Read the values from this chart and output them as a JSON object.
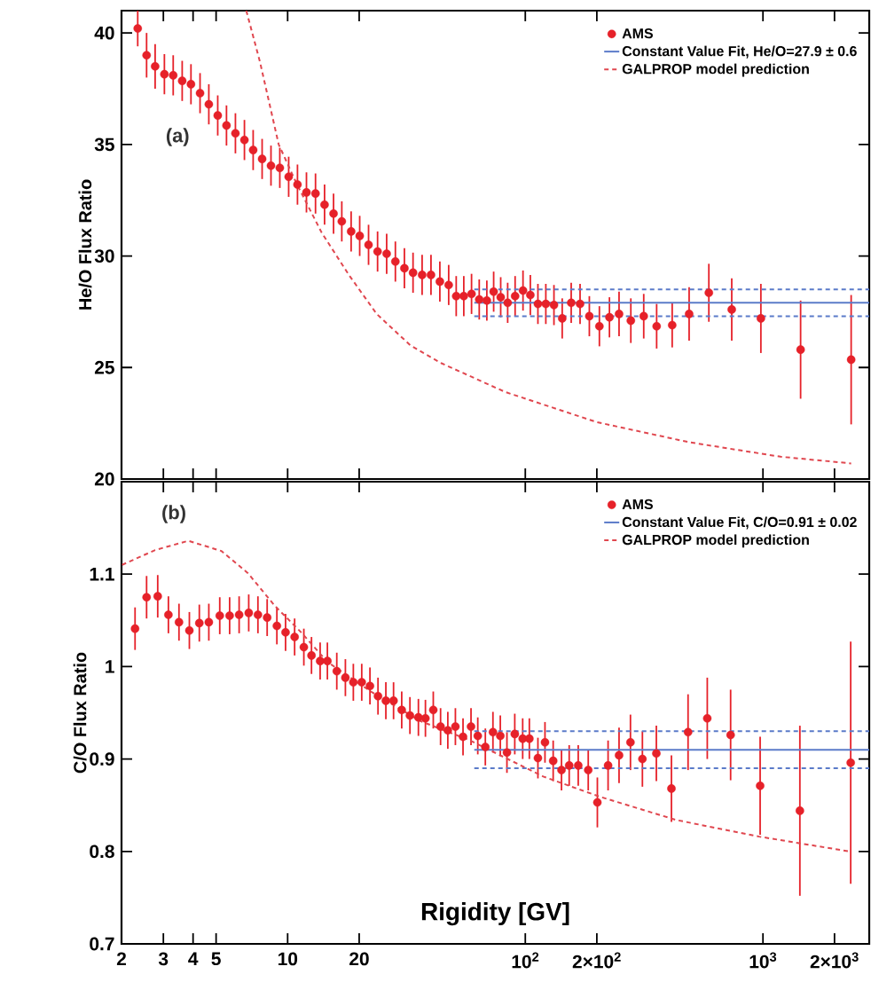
{
  "chart_data": [
    {
      "type": "scatter",
      "ylabel": "He/O Flux Ratio",
      "log": "x",
      "legend": "top right",
      "tick_labels": "y",
      "xlim": [
        2,
        2800
      ],
      "ylim": [
        20,
        41
      ],
      "xticks": [
        {
          "value": 2,
          "label": null
        },
        {
          "value": 3,
          "label": null
        },
        {
          "value": 4,
          "label": null
        },
        {
          "value": 5,
          "label": null
        },
        {
          "value": 10,
          "label": null
        },
        {
          "value": 20,
          "label": null
        },
        {
          "value": 100,
          "label": null
        },
        {
          "value": 200,
          "label": null
        },
        {
          "value": 1000,
          "label": null
        },
        {
          "value": 2000,
          "label": null
        }
      ],
      "yticks": [
        20,
        25,
        30,
        35,
        40
      ],
      "annotations": [
        "(a)"
      ],
      "series": [
        {
          "name": "AMS",
          "marker": "circle",
          "color": "#e62129",
          "x": [
            2.34,
            2.55,
            2.77,
            3.03,
            3.3,
            3.6,
            3.92,
            4.28,
            4.66,
            5.08,
            5.53,
            6.03,
            6.58,
            7.16,
            7.81,
            8.51,
            9.27,
            10.1,
            11.0,
            12.0,
            13.1,
            14.3,
            15.6,
            16.9,
            18.5,
            20.1,
            21.9,
            23.9,
            26.1,
            28.4,
            31.0,
            33.7,
            36.8,
            40.1,
            43.7,
            47.6,
            51.2,
            55.1,
            59.4,
            64.0,
            68.9,
            73.6,
            78.8,
            84.3,
            90.6,
            97.8,
            105,
            113,
            122,
            132,
            143,
            156,
            170,
            186,
            205,
            226,
            248,
            278,
            315,
            357,
            415,
            489,
            592,
            739,
            980,
            1440,
            2350
          ],
          "values": [
            40.2,
            39.0,
            38.5,
            38.15,
            38.1,
            37.85,
            37.7,
            37.3,
            36.8,
            36.3,
            35.85,
            35.5,
            35.2,
            34.75,
            34.35,
            34.05,
            33.95,
            33.55,
            33.2,
            32.85,
            32.8,
            32.3,
            31.9,
            31.55,
            31.1,
            30.9,
            30.5,
            30.2,
            30.1,
            29.75,
            29.45,
            29.25,
            29.15,
            29.15,
            28.85,
            28.7,
            28.2,
            28.2,
            28.3,
            28.05,
            28.0,
            28.4,
            28.15,
            27.9,
            28.2,
            28.45,
            28.25,
            27.85,
            27.85,
            27.8,
            27.2,
            27.9,
            27.85,
            27.3,
            26.85,
            27.25,
            27.4,
            27.1,
            27.3,
            26.85,
            26.9,
            27.4,
            28.35,
            27.6,
            27.2,
            25.8,
            25.35
          ],
          "errors": [
            0.8,
            1.0,
            1.0,
            0.9,
            0.9,
            0.9,
            0.9,
            0.9,
            0.9,
            0.9,
            0.9,
            0.9,
            0.9,
            0.9,
            0.9,
            0.9,
            0.9,
            0.9,
            0.9,
            0.9,
            0.9,
            0.9,
            0.9,
            0.9,
            0.9,
            0.9,
            0.9,
            0.9,
            0.9,
            0.9,
            0.9,
            0.9,
            0.9,
            0.9,
            0.9,
            0.9,
            0.9,
            0.9,
            0.9,
            0.9,
            0.9,
            0.9,
            0.9,
            0.9,
            0.9,
            0.9,
            0.9,
            0.9,
            0.9,
            0.9,
            0.9,
            0.9,
            0.9,
            0.9,
            0.9,
            0.9,
            1.0,
            1.0,
            1.0,
            1.0,
            1.0,
            1.2,
            1.3,
            1.4,
            1.55,
            2.2,
            2.9
          ]
        },
        {
          "name": "Constant Value Fit, He/O=27.9 ± 0.6",
          "type": "line",
          "color": "#5b7bc9",
          "x": [
            61,
            2800
          ],
          "values": [
            27.9,
            27.9
          ]
        },
        {
          "type": "line",
          "line_style": "dashed",
          "color": "#5b7bc9",
          "x": [
            61,
            2800
          ],
          "values": [
            28.5,
            28.5
          ]
        },
        {
          "type": "line",
          "line_style": "dashed",
          "color": "#5b7bc9",
          "x": [
            61,
            2800
          ],
          "values": [
            27.3,
            27.3
          ]
        },
        {
          "name": "GALPROP model prediction",
          "type": "line",
          "line_style": "dashed",
          "color": "#e0474f",
          "x": [
            6.7,
            7.65,
            9.17,
            10.9,
            13.9,
            18.1,
            23.7,
            32.8,
            44.2,
            82.4,
            200,
            489,
            1186,
            2350
          ],
          "values": [
            41,
            38.7,
            35.0,
            33.25,
            31.05,
            29.15,
            27.4,
            26.0,
            25.2,
            23.9,
            22.55,
            21.65,
            21.0,
            20.7
          ]
        }
      ]
    },
    {
      "type": "scatter",
      "xlabel": "Rigidity [GV]",
      "ylabel": "C/O Flux Ratio",
      "log": "x",
      "legend": "top right",
      "xlim": [
        2,
        2800
      ],
      "ylim": [
        0.7,
        1.2
      ],
      "xticks": [
        2,
        3,
        4,
        5,
        10,
        20,
        {
          "value": 100,
          "label": "10$^{2}$"
        },
        {
          "value": 200,
          "label": "2×10$^{2}$"
        },
        {
          "value": 1000,
          "label": "10$^{3}$"
        },
        {
          "value": 2000,
          "label": "2×10$^{3}$"
        }
      ],
      "yticks": [
        0.7,
        0.8,
        0.9,
        1,
        1.1
      ],
      "annotations": [
        "(b)"
      ],
      "series": [
        {
          "name": "AMS",
          "marker": "circle",
          "color": "#e62129",
          "x": [
            2.28,
            2.55,
            2.84,
            3.15,
            3.49,
            3.86,
            4.25,
            4.66,
            5.18,
            5.7,
            6.25,
            6.86,
            7.5,
            8.2,
            9.01,
            9.8,
            10.7,
            11.7,
            12.6,
            13.7,
            14.7,
            16.1,
            17.5,
            18.9,
            20.5,
            22.2,
            24.0,
            25.9,
            27.9,
            30.2,
            32.7,
            35.5,
            38.0,
            41.0,
            44.0,
            47.2,
            50.8,
            54.7,
            59.1,
            63.1,
            67.9,
            73.1,
            78.5,
            83.7,
            90.3,
            97.5,
            104,
            113,
            121,
            131,
            142,
            153,
            167,
            184,
            201,
            223,
            248,
            277,
            311,
            356,
            412,
            484,
            583,
            731,
            973,
            1430,
            2340
          ],
          "values": [
            1.041,
            1.075,
            1.076,
            1.056,
            1.048,
            1.039,
            1.047,
            1.048,
            1.055,
            1.055,
            1.056,
            1.058,
            1.056,
            1.053,
            1.044,
            1.037,
            1.032,
            1.021,
            1.012,
            1.006,
            1.006,
            0.995,
            0.988,
            0.983,
            0.983,
            0.979,
            0.968,
            0.963,
            0.963,
            0.953,
            0.947,
            0.945,
            0.944,
            0.953,
            0.935,
            0.931,
            0.935,
            0.924,
            0.935,
            0.925,
            0.913,
            0.929,
            0.925,
            0.907,
            0.927,
            0.922,
            0.922,
            0.901,
            0.918,
            0.898,
            0.888,
            0.893,
            0.893,
            0.888,
            0.853,
            0.893,
            0.904,
            0.918,
            0.9,
            0.906,
            0.868,
            0.929,
            0.944,
            0.926,
            0.871,
            0.844,
            0.896
          ],
          "errors": [
            0.023,
            0.023,
            0.023,
            0.02,
            0.02,
            0.02,
            0.02,
            0.02,
            0.02,
            0.02,
            0.02,
            0.02,
            0.02,
            0.02,
            0.02,
            0.02,
            0.02,
            0.02,
            0.02,
            0.02,
            0.02,
            0.02,
            0.02,
            0.02,
            0.02,
            0.02,
            0.02,
            0.02,
            0.02,
            0.02,
            0.02,
            0.02,
            0.02,
            0.02,
            0.02,
            0.02,
            0.02,
            0.02,
            0.02,
            0.02,
            0.02,
            0.022,
            0.022,
            0.022,
            0.022,
            0.022,
            0.022,
            0.022,
            0.022,
            0.022,
            0.022,
            0.022,
            0.022,
            0.022,
            0.027,
            0.027,
            0.03,
            0.03,
            0.03,
            0.03,
            0.036,
            0.041,
            0.044,
            0.049,
            0.053,
            0.092,
            0.131
          ]
        },
        {
          "name": "Constant Value Fit, C/O=0.91 ± 0.02",
          "type": "line",
          "color": "#5b7bc9",
          "x": [
            61,
            2800
          ],
          "values": [
            0.91,
            0.91
          ]
        },
        {
          "type": "line",
          "line_style": "dashed",
          "color": "#5b7bc9",
          "x": [
            61,
            2800
          ],
          "values": [
            0.93,
            0.93
          ]
        },
        {
          "type": "line",
          "line_style": "dashed",
          "color": "#5b7bc9",
          "x": [
            61,
            2800
          ],
          "values": [
            0.89,
            0.89
          ]
        },
        {
          "name": "GALPROP model prediction",
          "type": "line",
          "line_style": "dashed",
          "color": "#e0474f",
          "x": [
            2.01,
            2.77,
            3.82,
            5.27,
            6.81,
            8.81,
            11.4,
            14.7,
            22.4,
            36.2,
            58.7,
            119,
            207,
            432,
            966,
            2310
          ],
          "values": [
            1.11,
            1.126,
            1.136,
            1.125,
            1.101,
            1.066,
            1.037,
            1.005,
            0.973,
            0.941,
            0.92,
            0.881,
            0.859,
            0.834,
            0.816,
            0.8
          ]
        }
      ]
    }
  ]
}
